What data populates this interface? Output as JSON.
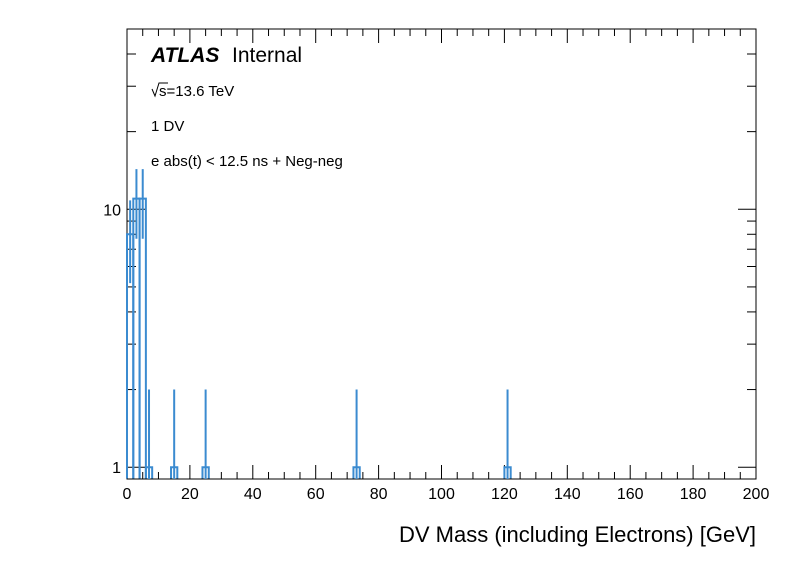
{
  "chart_data": {
    "type": "histogram",
    "xlabel": "DV Mass (including Electrons) [GeV]",
    "ylabel": "",
    "xlim": [
      0,
      200
    ],
    "ylim": [
      0.9,
      50
    ],
    "yscale": "log",
    "x_ticks": [
      0,
      20,
      40,
      60,
      80,
      100,
      120,
      140,
      160,
      180,
      200
    ],
    "y_tick_labels": [
      {
        "value": 1,
        "label": "1"
      },
      {
        "value": 10,
        "label": "10"
      }
    ],
    "brand": {
      "experiment": "ATLAS",
      "status": "Internal"
    },
    "annotations": {
      "energy": "s=13.6 TeV",
      "selection": "1 DV",
      "cut": "e abs(t) < 12.5 ns + Neg-neg"
    },
    "series": [
      {
        "name": "e abs(t) < 12.5 ns + Neg-neg",
        "color": "#3b8bd0",
        "bin_width": 2,
        "bins": [
          {
            "x": 1,
            "y": 8
          },
          {
            "x": 3,
            "y": 11
          },
          {
            "x": 5,
            "y": 11
          },
          {
            "x": 7,
            "y": 1
          },
          {
            "x": 15,
            "y": 1
          },
          {
            "x": 25,
            "y": 1
          },
          {
            "x": 73,
            "y": 1
          },
          {
            "x": 121,
            "y": 1
          }
        ]
      }
    ]
  }
}
